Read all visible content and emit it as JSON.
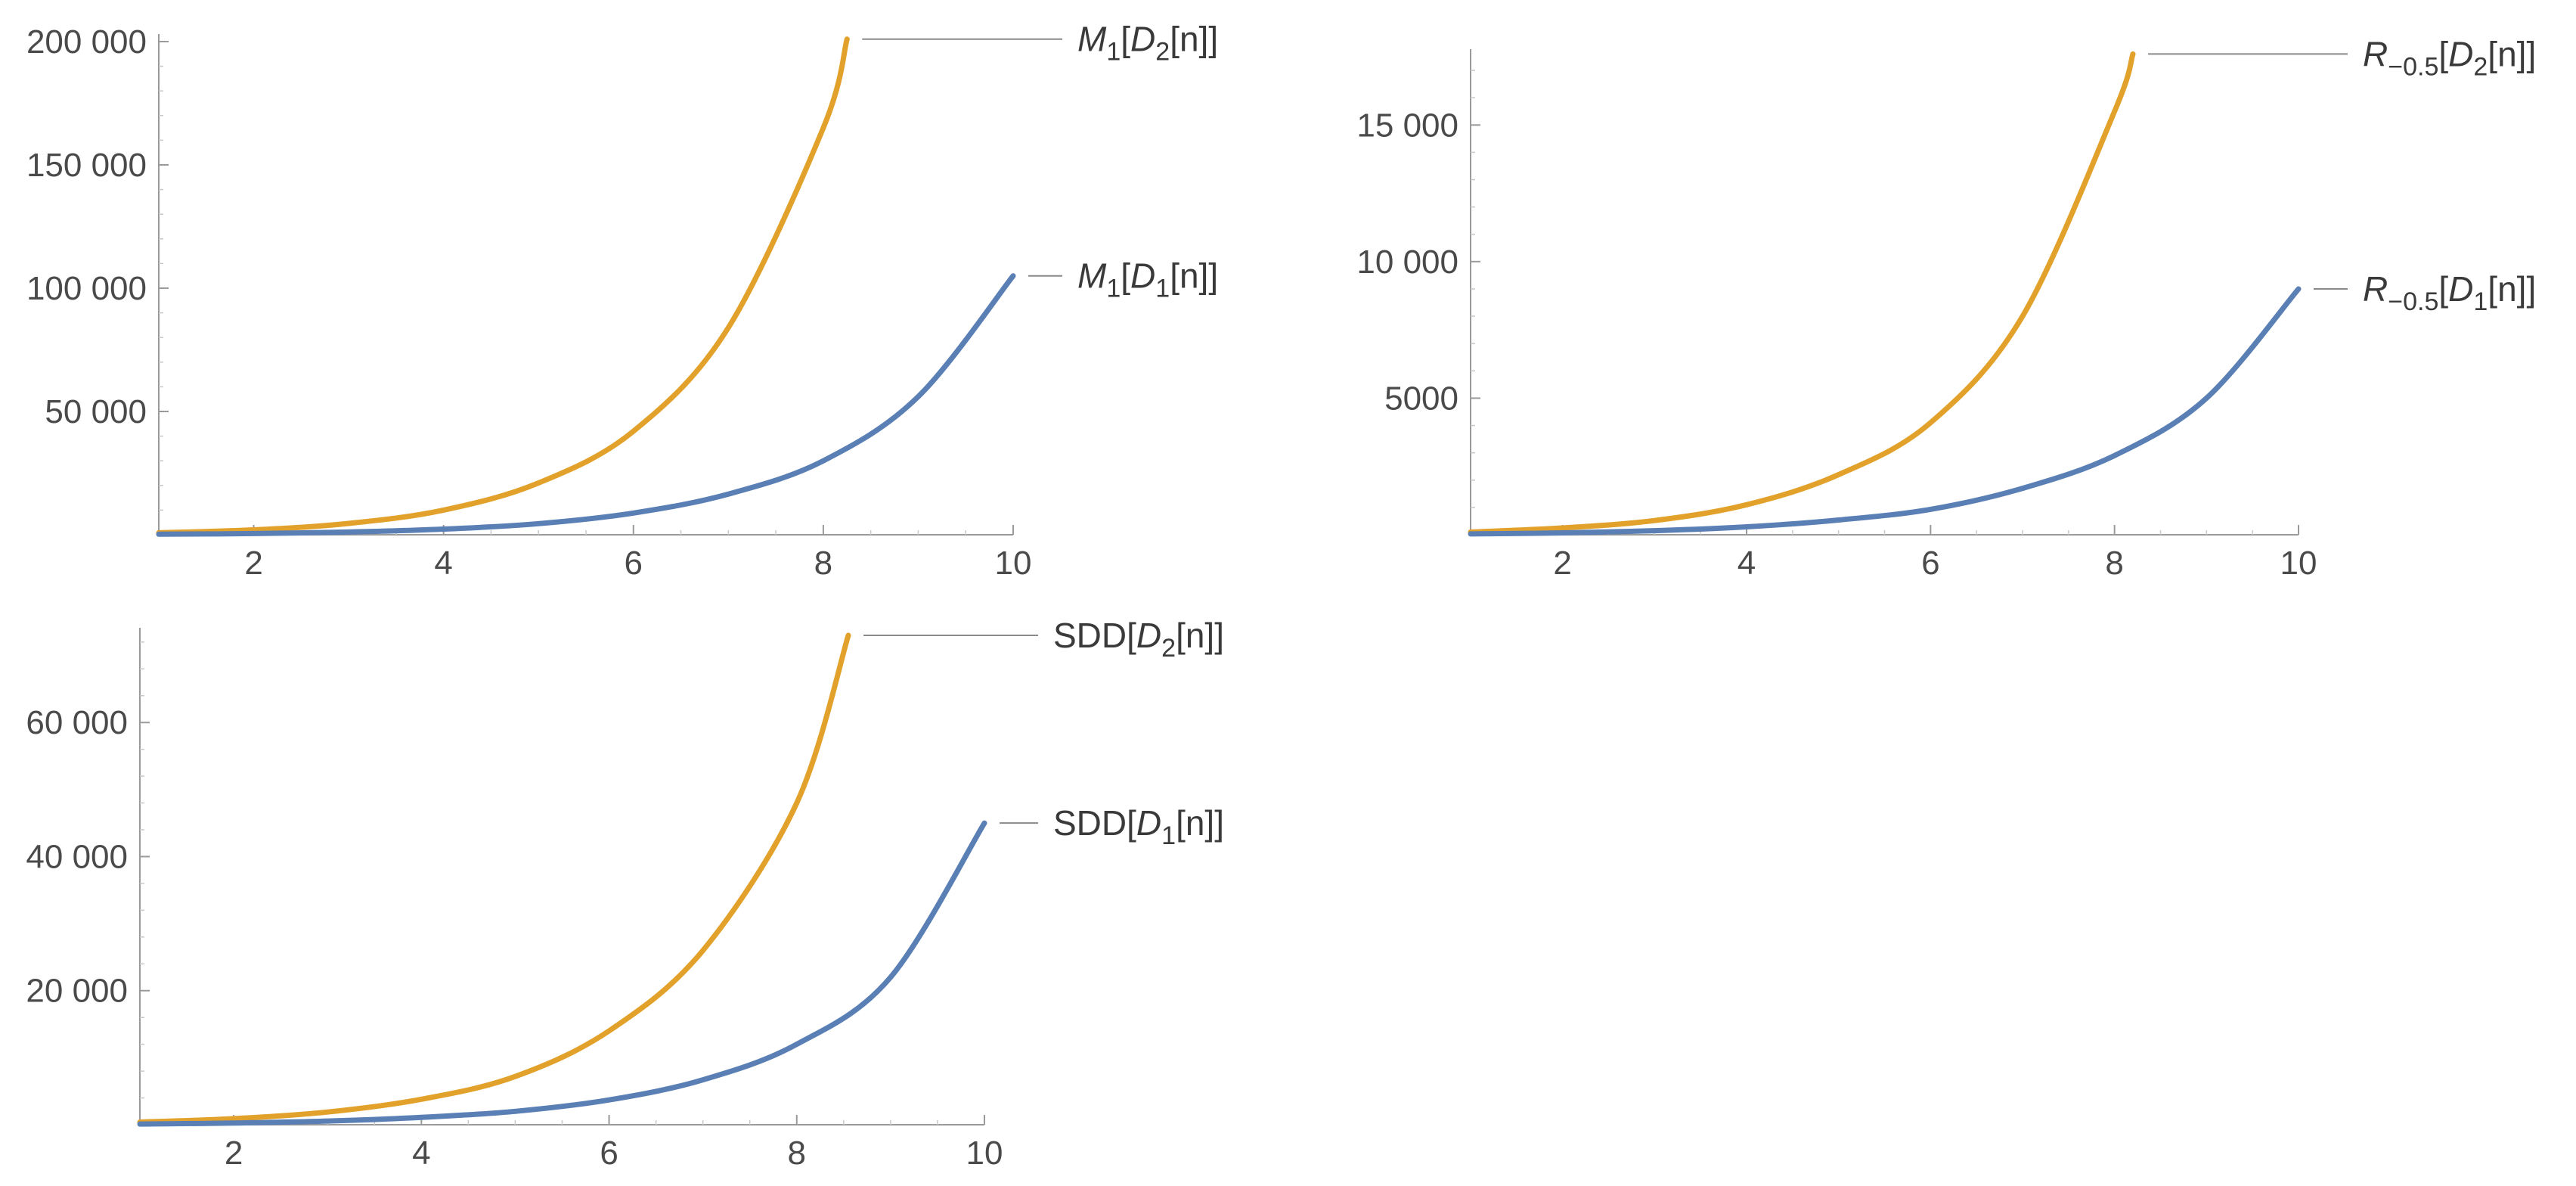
{
  "colors": {
    "series_1": "#5a7fb5",
    "series_2": "#e2a12a",
    "axis": "#9a9a9a",
    "text": "#4a4a4a"
  },
  "chart_data": [
    {
      "type": "line",
      "title": "",
      "xlabel": "",
      "ylabel": "",
      "xlim": [
        1,
        10
      ],
      "ylim": [
        0,
        200000
      ],
      "x_ticks": [
        "2",
        "4",
        "6",
        "8",
        "10"
      ],
      "y_ticks": [
        "50 000",
        "100 000",
        "150 000",
        "200 000"
      ],
      "grid": false,
      "legend": "curve-end labels",
      "series": [
        {
          "label": {
            "base": "M",
            "sub": "1",
            "open": "[",
            "arg": "D",
            "argsub": "2",
            "tail": "[n]]"
          },
          "color": "#e2a12a",
          "x": [
            1,
            2,
            3,
            4,
            5,
            6,
            7,
            8,
            8.25
          ],
          "y": [
            800,
            2000,
            4600,
            10000,
            21000,
            42000,
            84000,
            165000,
            201000
          ]
        },
        {
          "label": {
            "base": "M",
            "sub": "1",
            "open": "[",
            "arg": "D",
            "argsub": "1",
            "tail": "[n]]"
          },
          "color": "#5a7fb5",
          "x": [
            1,
            2,
            3,
            4,
            5,
            6,
            7,
            8,
            9,
            10
          ],
          "y": [
            200,
            500,
            1100,
            2300,
            4500,
            8800,
            16500,
            30000,
            56000,
            105000
          ]
        }
      ]
    },
    {
      "type": "line",
      "title": "",
      "xlabel": "",
      "ylabel": "",
      "xlim": [
        1,
        10
      ],
      "ylim": [
        0,
        17500
      ],
      "x_ticks": [
        "2",
        "4",
        "6",
        "8",
        "10"
      ],
      "y_ticks": [
        "5000",
        "10 000",
        "15 000"
      ],
      "grid": false,
      "legend": "curve-end labels",
      "series": [
        {
          "label": {
            "base": "R",
            "sub": "−0.5",
            "open": "[",
            "arg": "D",
            "argsub": "2",
            "tail": "[n]]"
          },
          "color": "#e2a12a",
          "x": [
            1,
            2,
            3,
            4,
            5,
            6,
            7,
            8,
            8.2
          ],
          "y": [
            100,
            250,
            520,
            1100,
            2200,
            4100,
            8000,
            15500,
            17600
          ]
        },
        {
          "label": {
            "base": "R",
            "sub": "−0.5",
            "open": "[",
            "arg": "D",
            "argsub": "1",
            "tail": "[n]]"
          },
          "color": "#5a7fb5",
          "x": [
            1,
            2,
            3,
            4,
            5,
            6,
            7,
            8,
            9,
            10
          ],
          "y": [
            30,
            70,
            150,
            290,
            540,
            930,
            1700,
            2900,
            5000,
            9000
          ]
        }
      ]
    },
    {
      "type": "line",
      "title": "",
      "xlabel": "",
      "ylabel": "",
      "xlim": [
        1,
        10
      ],
      "ylim": [
        0,
        73000
      ],
      "x_ticks": [
        "2",
        "4",
        "6",
        "8",
        "10"
      ],
      "y_ticks": [
        "20 000",
        "40 000",
        "60 000"
      ],
      "grid": false,
      "legend": "curve-end labels",
      "series": [
        {
          "label": {
            "base": "SDD",
            "sub": "",
            "open": "[",
            "arg": "D",
            "argsub": "2",
            "tail": "[n]]"
          },
          "color": "#e2a12a",
          "x": [
            1,
            2,
            3,
            4,
            5,
            6,
            7,
            8,
            8.55
          ],
          "y": [
            400,
            900,
            1900,
            3800,
            7200,
            14000,
            26000,
            48000,
            73000
          ]
        },
        {
          "label": {
            "base": "SDD",
            "sub": "",
            "open": "[",
            "arg": "D",
            "argsub": "1",
            "tail": "[n]]"
          },
          "color": "#5a7fb5",
          "x": [
            1,
            2,
            3,
            4,
            5,
            6,
            7,
            8,
            9,
            10
          ],
          "y": [
            100,
            250,
            550,
            1100,
            2000,
            3700,
            6700,
            12000,
            22000,
            45000
          ]
        }
      ]
    }
  ]
}
